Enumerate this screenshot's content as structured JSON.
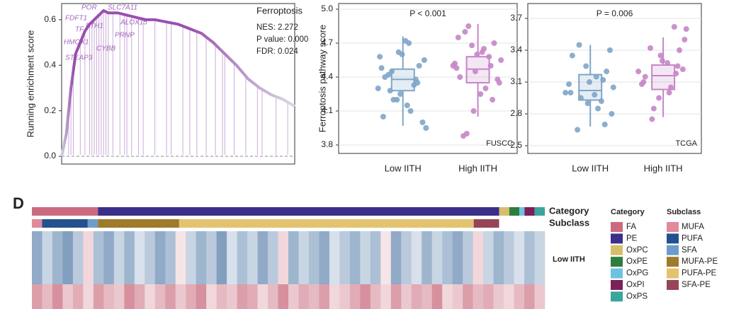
{
  "chart_data": [
    {
      "type": "gsea",
      "title": "Ferroptosis",
      "ylabel": "Running enrichment score",
      "stats": [
        "NES: 2.272",
        "P value: 0.000",
        "FDR: 0.024"
      ],
      "genes": [
        "POR",
        "SLC7A11",
        "FDFT1",
        "FTH1",
        "ALOX15",
        "TF",
        "PRNP",
        "HMOX1",
        "CYBB",
        "STEAP3"
      ],
      "color": "#8e44ad",
      "x": [
        0,
        2,
        4,
        6,
        8,
        10,
        12,
        14,
        16,
        18,
        20,
        24,
        28,
        32,
        36,
        40,
        45,
        50,
        55,
        60,
        65,
        70,
        75,
        80,
        85,
        90,
        95,
        100
      ],
      "values": [
        0,
        0.1,
        0.3,
        0.45,
        0.5,
        0.55,
        0.58,
        0.6,
        0.62,
        0.64,
        0.63,
        0.63,
        0.62,
        0.61,
        0.6,
        0.6,
        0.59,
        0.58,
        0.56,
        0.54,
        0.5,
        0.45,
        0.4,
        0.34,
        0.3,
        0.27,
        0.25,
        0.22
      ],
      "hits": [
        3,
        4,
        5,
        8,
        10,
        12,
        13,
        14,
        15,
        16,
        17,
        18,
        19,
        20,
        22,
        25,
        27,
        28,
        30,
        33,
        35,
        40,
        45,
        47,
        52,
        55,
        58,
        62,
        66,
        69,
        70,
        74,
        79,
        84,
        86,
        92,
        97
      ],
      "xlim": [
        0,
        100
      ],
      "ylim": [
        -0.034,
        0.671
      ],
      "yticks": [
        {
          "value": 0,
          "label": "0.0"
        },
        0.2,
        0.4,
        0.6
      ]
    },
    {
      "type": "box",
      "ylabel": "Ferroptosis pathway score",
      "annotation": "P < 0.001",
      "panel": "FUSCC",
      "categories": [
        "Low IITH",
        "High IITH"
      ],
      "colors": [
        "#7ea5c8",
        "#c685c8"
      ],
      "boxes": [
        {
          "whislo": 3.97,
          "q1": 4.28,
          "med": 4.38,
          "q3": 4.47,
          "whishi": 4.76
        },
        {
          "whislo": 4.05,
          "q1": 4.35,
          "med": 4.47,
          "q3": 4.58,
          "whishi": 4.87
        }
      ],
      "points": [
        [
          4.3,
          4.5,
          4.1,
          4.6,
          4.2,
          4.4,
          3.95,
          4.35,
          4.7,
          4.25,
          4.45,
          4.05,
          4.55,
          4.38,
          4.15,
          4.62,
          4.28,
          4.48,
          4.0,
          4.33,
          4.72,
          4.2,
          4.42,
          4.58
        ],
        [
          4.5,
          4.7,
          4.3,
          4.6,
          4.85,
          4.4,
          4.55,
          4.2,
          4.65,
          4.45,
          3.9,
          4.75,
          4.35,
          4.5,
          4.62,
          4.1,
          4.8,
          4.48,
          4.38,
          4.58,
          4.25,
          4.68,
          3.88,
          4.52
        ]
      ],
      "ylim": [
        3.725,
        5.05
      ],
      "yticks": [
        3.8,
        4.1,
        4.4,
        4.7,
        {
          "value": 5.0,
          "label": "5.0"
        }
      ],
      "grid": true
    },
    {
      "type": "box",
      "annotation": "P = 0.006",
      "panel": "TCGA",
      "categories": [
        "Low IITH",
        "High IITH"
      ],
      "colors": [
        "#7ea5c8",
        "#c685c8"
      ],
      "boxes": [
        {
          "whislo": 2.68,
          "q1": 2.93,
          "med": 3.02,
          "q3": 3.17,
          "whishi": 3.45
        },
        {
          "whislo": 2.77,
          "q1": 3.03,
          "med": 3.16,
          "q3": 3.26,
          "whishi": 3.52
        }
      ],
      "points": [
        [
          3.0,
          3.2,
          2.85,
          3.1,
          2.95,
          3.35,
          3.05,
          2.7,
          3.15,
          2.9,
          3.45,
          3.0,
          2.8,
          3.12,
          2.98,
          3.25,
          2.65,
          3.08,
          3.4,
          2.92
        ],
        [
          3.2,
          3.4,
          3.05,
          3.3,
          2.85,
          3.15,
          3.6,
          3.25,
          3.0,
          3.35,
          2.75,
          3.1,
          3.5,
          3.18,
          3.28,
          2.95,
          3.42,
          3.08,
          3.22,
          3.62
        ]
      ],
      "ylim": [
        2.427,
        3.84
      ],
      "yticks": [
        2.5,
        2.8,
        3.1,
        3.4,
        3.7
      ],
      "grid": true
    },
    {
      "type": "heatmap",
      "panel_label": "D",
      "category": {
        "title": "Category",
        "names": [
          "FA",
          "PE",
          "OxPC",
          "OxPE",
          "OxPG",
          "OxPI",
          "OxPS"
        ],
        "values": [
          13,
          79,
          2,
          2,
          1,
          2,
          2
        ],
        "colors": [
          "#cc6b80",
          "#3b2f8a",
          "#d8be6b",
          "#2e7d3e",
          "#6cc3e0",
          "#7c1f5a",
          "#3aa59a"
        ]
      },
      "subclass": {
        "title": "Subclass",
        "names": [
          "MUFA",
          "PUFA",
          "SFA",
          "MUFA-PE",
          "PUFA-PE",
          "SFA-PE"
        ],
        "values": [
          2,
          9,
          2,
          16,
          58,
          5
        ],
        "colors": [
          "#e08a9a",
          "#24508f",
          "#6d9cc9",
          "#a07a2c",
          "#e4c36e",
          "#974457"
        ]
      },
      "rows": [
        "Low IITH",
        null
      ],
      "low_color": "#4f78a6",
      "high_color": "#c04f63",
      "values": [
        [
          -0.6,
          -0.2,
          -0.5,
          -0.7,
          -0.3,
          0.1,
          -0.4,
          -0.6,
          -0.2,
          -0.5,
          -0.1,
          -0.3,
          -0.6,
          -0.4,
          0.0,
          -0.2,
          -0.5,
          -0.3,
          -0.7,
          -0.1,
          -0.4,
          -0.2,
          -0.6,
          -0.3,
          0.1,
          -0.5,
          -0.2,
          -0.4,
          -0.6,
          -0.1,
          -0.3,
          -0.5,
          -0.2,
          -0.4,
          0.0,
          -0.6,
          -0.3,
          -0.1,
          -0.5,
          -0.2,
          -0.4,
          -0.6,
          -0.3,
          0.1,
          -0.2,
          -0.5,
          -0.3,
          -0.1,
          -0.4,
          -0.2
        ],
        [
          0.5,
          0.3,
          0.6,
          0.2,
          0.4,
          0.1,
          0.5,
          0.3,
          0.2,
          0.6,
          0.4,
          0.1,
          0.3,
          0.5,
          0.2,
          0.4,
          0.6,
          0.1,
          0.3,
          0.2,
          0.5,
          0.4,
          0.1,
          0.3,
          0.6,
          0.2,
          0.4,
          0.3,
          0.5,
          0.1,
          0.2,
          0.4,
          0.6,
          0.3,
          0.1,
          0.5,
          0.2,
          0.4,
          0.3,
          0.6,
          0.1,
          0.2,
          0.5,
          0.3,
          0.4,
          0.2,
          0.1,
          0.3,
          0.5,
          0.2
        ]
      ]
    }
  ]
}
